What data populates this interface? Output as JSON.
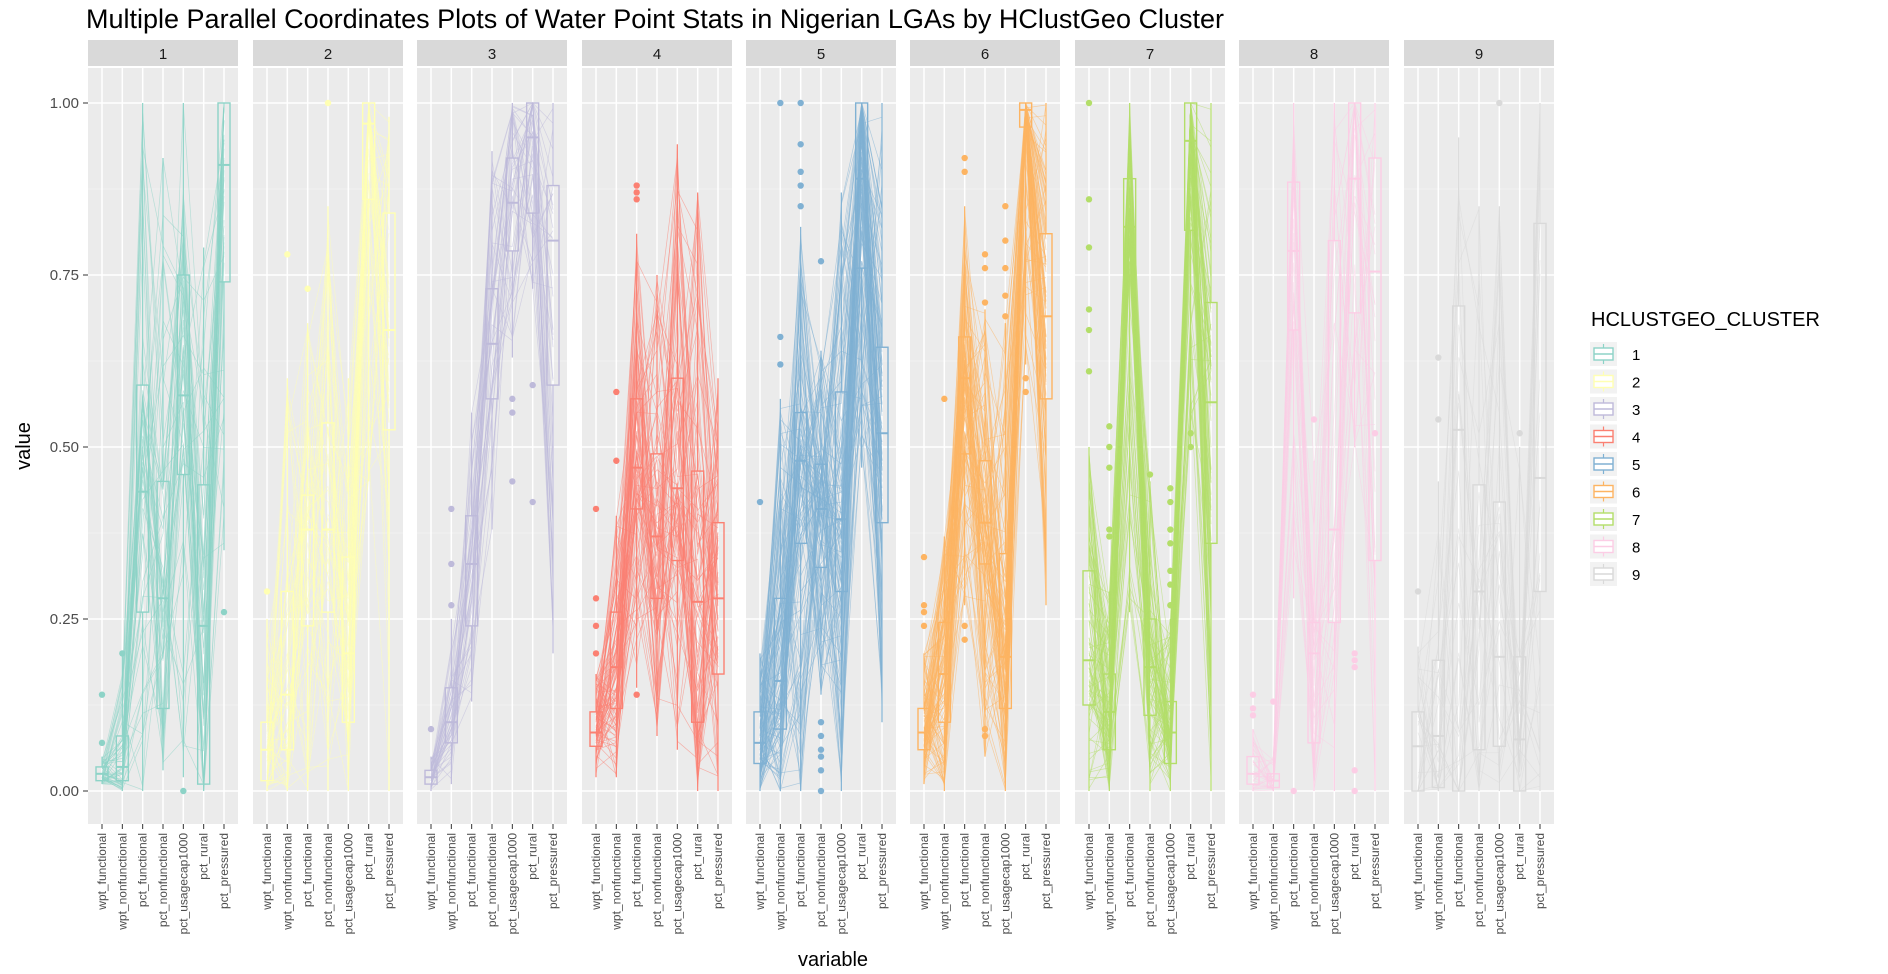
{
  "chart_data": {
    "type": "parallel-coordinates-boxplot",
    "title": "Multiple Parallel Coordinates Plots of Water Point Stats in Nigerian LGAs by HClustGeo Cluster",
    "xlabel": "variable",
    "ylabel": "value",
    "ylim": [
      0,
      1
    ],
    "y_ticks": [
      "0.00",
      "0.25",
      "0.50",
      "0.75",
      "1.00"
    ],
    "y_tick_values": [
      0,
      0.25,
      0.5,
      0.75,
      1
    ],
    "variables": [
      "wpt_functional",
      "wpt_nonfunctional",
      "pct_functional",
      "pct_nonfunctional",
      "pct_usagecap1000",
      "pct_rural",
      "pct_pressured"
    ],
    "legend": {
      "title": "HCLUSTGEO_CLUSTER",
      "placement": "right",
      "entries": [
        "1",
        "2",
        "3",
        "4",
        "5",
        "6",
        "7",
        "8",
        "9"
      ]
    },
    "grid": true,
    "panels": [
      {
        "label": "1",
        "color": "#8DD3C7",
        "lines": 60,
        "outliers": [
          [
            0,
            0.07
          ],
          [
            0,
            0.14
          ],
          [
            1,
            0.2
          ],
          [
            4,
            0.0
          ],
          [
            6,
            0.26
          ]
        ],
        "boxes": [
          [
            0.01,
            0.015,
            0.025,
            0.035,
            0.05
          ],
          [
            0.0,
            0.015,
            0.035,
            0.08,
            0.2
          ],
          [
            0.0,
            0.26,
            0.435,
            0.59,
            1.0
          ],
          [
            0.03,
            0.12,
            0.28,
            0.45,
            0.92
          ],
          [
            0.02,
            0.46,
            0.575,
            0.75,
            1.0
          ],
          [
            0.0,
            0.01,
            0.24,
            0.445,
            0.79
          ],
          [
            0.35,
            0.74,
            0.91,
            1.0,
            1.0
          ]
        ]
      },
      {
        "label": "2",
        "color": "#FFFFB3",
        "lines": 60,
        "outliers": [
          [
            0,
            0.29
          ],
          [
            1,
            0.78
          ],
          [
            2,
            0.73
          ],
          [
            3,
            1.0
          ]
        ],
        "boxes": [
          [
            0.0,
            0.015,
            0.06,
            0.1,
            0.25
          ],
          [
            0.0,
            0.06,
            0.14,
            0.29,
            0.6
          ],
          [
            0.0,
            0.24,
            0.38,
            0.43,
            0.68
          ],
          [
            0.0,
            0.26,
            0.38,
            0.535,
            0.85
          ],
          [
            0.0,
            0.1,
            0.2,
            0.34,
            0.6
          ],
          [
            0.45,
            0.86,
            0.97,
            1.0,
            1.0
          ],
          [
            0.0,
            0.525,
            0.67,
            0.84,
            0.98
          ]
        ]
      },
      {
        "label": "3",
        "color": "#BEBADA",
        "lines": 45,
        "outliers": [
          [
            0,
            0.09
          ],
          [
            1,
            0.41
          ],
          [
            1,
            0.33
          ],
          [
            1,
            0.27
          ],
          [
            4,
            0.55
          ],
          [
            4,
            0.57
          ],
          [
            4,
            0.45
          ],
          [
            5,
            0.59
          ],
          [
            5,
            0.42
          ]
        ],
        "boxes": [
          [
            0.0,
            0.01,
            0.02,
            0.03,
            0.05
          ],
          [
            0.01,
            0.07,
            0.1,
            0.15,
            0.25
          ],
          [
            0.13,
            0.24,
            0.33,
            0.4,
            0.55
          ],
          [
            0.38,
            0.57,
            0.65,
            0.73,
            0.93
          ],
          [
            0.63,
            0.785,
            0.855,
            0.92,
            1.0
          ],
          [
            0.73,
            0.84,
            0.95,
            1.0,
            1.0
          ],
          [
            0.2,
            0.59,
            0.8,
            0.88,
            1.0
          ]
        ]
      },
      {
        "label": "4",
        "color": "#FB8072",
        "lines": 90,
        "outliers": [
          [
            0,
            0.41
          ],
          [
            0,
            0.28
          ],
          [
            0,
            0.24
          ],
          [
            0,
            0.2
          ],
          [
            1,
            0.58
          ],
          [
            1,
            0.48
          ],
          [
            2,
            0.14
          ],
          [
            2,
            0.86
          ],
          [
            2,
            0.87
          ],
          [
            2,
            0.88
          ]
        ],
        "boxes": [
          [
            0.02,
            0.065,
            0.085,
            0.115,
            0.17
          ],
          [
            0.02,
            0.12,
            0.18,
            0.26,
            0.4
          ],
          [
            0.15,
            0.41,
            0.47,
            0.57,
            0.81
          ],
          [
            0.08,
            0.28,
            0.37,
            0.49,
            0.75
          ],
          [
            0.06,
            0.335,
            0.44,
            0.6,
            0.94
          ],
          [
            0.0,
            0.1,
            0.275,
            0.465,
            0.87
          ],
          [
            0.0,
            0.17,
            0.28,
            0.39,
            0.6
          ]
        ]
      },
      {
        "label": "5",
        "color": "#80B1D3",
        "lines": 120,
        "outliers": [
          [
            0,
            0.42
          ],
          [
            1,
            0.62
          ],
          [
            1,
            0.66
          ],
          [
            1,
            1.0
          ],
          [
            2,
            0.85
          ],
          [
            2,
            0.88
          ],
          [
            2,
            0.9
          ],
          [
            2,
            0.94
          ],
          [
            2,
            1.0
          ],
          [
            3,
            0.0
          ],
          [
            3,
            0.03
          ],
          [
            3,
            0.05
          ],
          [
            3,
            0.06
          ],
          [
            3,
            0.08
          ],
          [
            3,
            0.1
          ],
          [
            3,
            0.77
          ]
        ],
        "boxes": [
          [
            0.0,
            0.04,
            0.07,
            0.115,
            0.2
          ],
          [
            0.0,
            0.09,
            0.16,
            0.28,
            0.57
          ],
          [
            0.0,
            0.36,
            0.48,
            0.55,
            0.82
          ],
          [
            0.14,
            0.325,
            0.41,
            0.475,
            0.64
          ],
          [
            0.0,
            0.29,
            0.395,
            0.58,
            0.87
          ],
          [
            0.47,
            0.76,
            0.89,
            1.0,
            1.0
          ],
          [
            0.1,
            0.39,
            0.52,
            0.645,
            1.0
          ]
        ]
      },
      {
        "label": "6",
        "color": "#FDB462",
        "lines": 110,
        "outliers": [
          [
            0,
            0.24
          ],
          [
            0,
            0.26
          ],
          [
            0,
            0.27
          ],
          [
            0,
            0.34
          ],
          [
            1,
            0.57
          ],
          [
            2,
            0.22
          ],
          [
            2,
            0.24
          ],
          [
            2,
            0.9
          ],
          [
            2,
            0.92
          ],
          [
            3,
            0.08
          ],
          [
            3,
            0.09
          ],
          [
            3,
            0.71
          ],
          [
            3,
            0.76
          ],
          [
            3,
            0.78
          ],
          [
            4,
            0.69
          ],
          [
            4,
            0.72
          ],
          [
            4,
            0.76
          ],
          [
            4,
            0.8
          ],
          [
            4,
            0.85
          ],
          [
            5,
            0.58
          ],
          [
            5,
            0.6
          ]
        ],
        "boxes": [
          [
            0.01,
            0.06,
            0.085,
            0.12,
            0.2
          ],
          [
            0.0,
            0.1,
            0.17,
            0.245,
            0.37
          ],
          [
            0.27,
            0.49,
            0.6,
            0.66,
            0.85
          ],
          [
            0.05,
            0.33,
            0.39,
            0.48,
            0.7
          ],
          [
            0.0,
            0.12,
            0.195,
            0.345,
            0.68
          ],
          [
            0.62,
            0.965,
            0.99,
            1.0,
            1.0
          ],
          [
            0.27,
            0.57,
            0.69,
            0.81,
            1.0
          ]
        ]
      },
      {
        "label": "7",
        "color": "#B3DE69",
        "lines": 100,
        "outliers": [
          [
            0,
            1.0
          ],
          [
            0,
            0.86
          ],
          [
            0,
            0.79
          ],
          [
            0,
            0.7
          ],
          [
            0,
            0.67
          ],
          [
            0,
            0.61
          ],
          [
            1,
            0.53
          ],
          [
            1,
            0.5
          ],
          [
            1,
            0.47
          ],
          [
            1,
            0.38
          ],
          [
            1,
            0.37
          ],
          [
            3,
            0.46
          ],
          [
            4,
            0.44
          ],
          [
            4,
            0.42
          ],
          [
            4,
            0.38
          ],
          [
            4,
            0.36
          ],
          [
            4,
            0.32
          ],
          [
            4,
            0.3
          ],
          [
            4,
            0.27
          ],
          [
            5,
            0.52
          ],
          [
            5,
            0.5
          ]
        ],
        "boxes": [
          [
            0.0,
            0.125,
            0.19,
            0.32,
            0.5
          ],
          [
            0.0,
            0.06,
            0.115,
            0.17,
            0.29
          ],
          [
            0.26,
            0.75,
            0.82,
            0.89,
            1.0
          ],
          [
            0.0,
            0.11,
            0.18,
            0.25,
            0.45
          ],
          [
            0.0,
            0.04,
            0.085,
            0.13,
            0.25
          ],
          [
            0.5,
            0.815,
            0.945,
            1.0,
            1.0
          ],
          [
            0.0,
            0.36,
            0.565,
            0.71,
            1.0
          ]
        ]
      },
      {
        "label": "8",
        "color": "#FCCDE5",
        "lines": 35,
        "outliers": [
          [
            0,
            0.14
          ],
          [
            0,
            0.12
          ],
          [
            0,
            0.11
          ],
          [
            1,
            0.13
          ],
          [
            2,
            0.0
          ],
          [
            3,
            0.54
          ],
          [
            5,
            0.2
          ],
          [
            5,
            0.19
          ],
          [
            5,
            0.18
          ],
          [
            5,
            0.03
          ],
          [
            5,
            0.0
          ],
          [
            6,
            0.52
          ]
        ],
        "boxes": [
          [
            0.0,
            0.01,
            0.025,
            0.05,
            0.09
          ],
          [
            0.0,
            0.005,
            0.015,
            0.025,
            0.05
          ],
          [
            0.28,
            0.67,
            0.785,
            0.885,
            1.0
          ],
          [
            0.0,
            0.07,
            0.2,
            0.245,
            0.48
          ],
          [
            0.0,
            0.245,
            0.38,
            0.8,
            1.0
          ],
          [
            0.5,
            0.695,
            0.89,
            1.0,
            1.0
          ],
          [
            0.0,
            0.335,
            0.755,
            0.92,
            1.0
          ]
        ]
      },
      {
        "label": "9",
        "color": "#D9D9D9",
        "lines": 30,
        "outliers": [
          [
            0,
            0.29
          ],
          [
            1,
            0.63
          ],
          [
            1,
            0.54
          ],
          [
            4,
            1.0
          ],
          [
            5,
            0.52
          ]
        ],
        "boxes": [
          [
            0.0,
            0.0,
            0.065,
            0.115,
            0.21
          ],
          [
            0.0,
            0.005,
            0.08,
            0.19,
            0.45
          ],
          [
            0.0,
            0.0,
            0.525,
            0.705,
            0.95
          ],
          [
            0.0,
            0.06,
            0.29,
            0.445,
            0.85
          ],
          [
            0.0,
            0.065,
            0.195,
            0.42,
            0.85
          ],
          [
            0.0,
            0.0,
            0.075,
            0.195,
            0.5
          ],
          [
            0.0,
            0.29,
            0.455,
            0.825,
            1.0
          ]
        ]
      }
    ]
  }
}
